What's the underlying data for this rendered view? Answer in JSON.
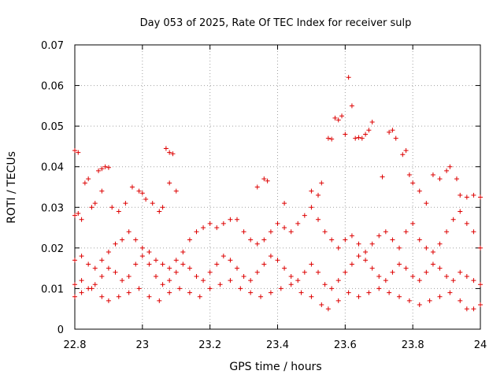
{
  "chart_data": {
    "type": "scatter",
    "title": "Day 053 of 2025, Rate Of TEC Index for receiver sulp",
    "xlabel": "GPS time / hours",
    "ylabel": "ROTI / TECUs",
    "xlim": [
      22.8,
      24.0
    ],
    "ylim": [
      0,
      0.07
    ],
    "xticks": [
      "22.8",
      "23",
      "23.2",
      "23.4",
      "23.6",
      "23.8",
      "24"
    ],
    "yticks": [
      "0",
      "0.01",
      "0.02",
      "0.03",
      "0.04",
      "0.05",
      "0.06",
      "0.07"
    ],
    "grid": true,
    "marker": "+",
    "marker_color": "#dd0000",
    "series": [
      {
        "name": "ROTI",
        "points": [
          [
            22.8,
            0.044
          ],
          [
            22.81,
            0.0435
          ],
          [
            22.83,
            0.036
          ],
          [
            22.84,
            0.037
          ],
          [
            22.85,
            0.03
          ],
          [
            22.8,
            0.028
          ],
          [
            22.81,
            0.0285
          ],
          [
            22.82,
            0.027
          ],
          [
            22.86,
            0.031
          ],
          [
            22.88,
            0.034
          ],
          [
            22.87,
            0.039
          ],
          [
            22.88,
            0.0395
          ],
          [
            22.89,
            0.04
          ],
          [
            22.9,
            0.0398
          ],
          [
            22.91,
            0.03
          ],
          [
            22.93,
            0.029
          ],
          [
            22.95,
            0.031
          ],
          [
            22.97,
            0.035
          ],
          [
            22.99,
            0.034
          ],
          [
            23.0,
            0.0335
          ],
          [
            23.01,
            0.032
          ],
          [
            23.03,
            0.031
          ],
          [
            23.05,
            0.029
          ],
          [
            23.06,
            0.03
          ],
          [
            23.07,
            0.0445
          ],
          [
            23.08,
            0.0435
          ],
          [
            23.09,
            0.0432
          ],
          [
            23.08,
            0.036
          ],
          [
            23.1,
            0.034
          ],
          [
            23.34,
            0.035
          ],
          [
            23.36,
            0.037
          ],
          [
            23.37,
            0.0365
          ],
          [
            23.42,
            0.031
          ],
          [
            23.5,
            0.034
          ],
          [
            23.52,
            0.033
          ],
          [
            23.53,
            0.036
          ],
          [
            23.55,
            0.047
          ],
          [
            23.56,
            0.0468
          ],
          [
            23.57,
            0.052
          ],
          [
            23.58,
            0.0515
          ],
          [
            23.59,
            0.0525
          ],
          [
            23.6,
            0.048
          ],
          [
            23.61,
            0.062
          ],
          [
            23.62,
            0.055
          ],
          [
            23.63,
            0.047
          ],
          [
            23.64,
            0.0472
          ],
          [
            23.65,
            0.047
          ],
          [
            23.66,
            0.048
          ],
          [
            23.67,
            0.049
          ],
          [
            23.68,
            0.051
          ],
          [
            23.71,
            0.0375
          ],
          [
            23.73,
            0.0485
          ],
          [
            23.74,
            0.049
          ],
          [
            23.75,
            0.047
          ],
          [
            23.77,
            0.043
          ],
          [
            23.78,
            0.044
          ],
          [
            23.79,
            0.038
          ],
          [
            23.8,
            0.036
          ],
          [
            23.82,
            0.034
          ],
          [
            23.84,
            0.031
          ],
          [
            23.86,
            0.038
          ],
          [
            23.88,
            0.037
          ],
          [
            23.9,
            0.039
          ],
          [
            23.91,
            0.04
          ],
          [
            23.93,
            0.037
          ],
          [
            23.94,
            0.033
          ],
          [
            23.96,
            0.0325
          ],
          [
            23.98,
            0.033
          ],
          [
            24.0,
            0.0325
          ],
          [
            22.8,
            0.017
          ],
          [
            22.82,
            0.018
          ],
          [
            22.84,
            0.016
          ],
          [
            22.86,
            0.015
          ],
          [
            22.88,
            0.017
          ],
          [
            22.9,
            0.019
          ],
          [
            22.92,
            0.021
          ],
          [
            22.94,
            0.022
          ],
          [
            22.96,
            0.024
          ],
          [
            22.98,
            0.022
          ],
          [
            23.0,
            0.02
          ],
          [
            23.02,
            0.019
          ],
          [
            23.04,
            0.017
          ],
          [
            23.06,
            0.016
          ],
          [
            23.08,
            0.015
          ],
          [
            23.1,
            0.017
          ],
          [
            23.12,
            0.019
          ],
          [
            23.14,
            0.022
          ],
          [
            23.16,
            0.024
          ],
          [
            23.18,
            0.025
          ],
          [
            23.2,
            0.026
          ],
          [
            23.22,
            0.025
          ],
          [
            23.24,
            0.026
          ],
          [
            23.26,
            0.027
          ],
          [
            23.28,
            0.027
          ],
          [
            23.3,
            0.024
          ],
          [
            23.32,
            0.022
          ],
          [
            23.34,
            0.021
          ],
          [
            23.36,
            0.022
          ],
          [
            23.38,
            0.024
          ],
          [
            23.4,
            0.026
          ],
          [
            23.42,
            0.025
          ],
          [
            23.44,
            0.024
          ],
          [
            23.46,
            0.026
          ],
          [
            23.48,
            0.028
          ],
          [
            23.5,
            0.03
          ],
          [
            23.52,
            0.027
          ],
          [
            23.54,
            0.024
          ],
          [
            23.56,
            0.022
          ],
          [
            23.58,
            0.02
          ],
          [
            23.6,
            0.022
          ],
          [
            23.62,
            0.023
          ],
          [
            23.64,
            0.021
          ],
          [
            23.66,
            0.019
          ],
          [
            23.68,
            0.021
          ],
          [
            23.7,
            0.023
          ],
          [
            23.72,
            0.024
          ],
          [
            23.74,
            0.022
          ],
          [
            23.76,
            0.02
          ],
          [
            23.78,
            0.024
          ],
          [
            23.8,
            0.026
          ],
          [
            23.82,
            0.022
          ],
          [
            23.84,
            0.02
          ],
          [
            23.86,
            0.019
          ],
          [
            23.88,
            0.021
          ],
          [
            23.9,
            0.024
          ],
          [
            23.92,
            0.027
          ],
          [
            23.94,
            0.029
          ],
          [
            23.96,
            0.026
          ],
          [
            23.98,
            0.024
          ],
          [
            24.0,
            0.02
          ],
          [
            22.8,
            0.011
          ],
          [
            22.82,
            0.012
          ],
          [
            22.84,
            0.01
          ],
          [
            22.86,
            0.011
          ],
          [
            22.88,
            0.013
          ],
          [
            22.9,
            0.015
          ],
          [
            22.92,
            0.014
          ],
          [
            22.94,
            0.012
          ],
          [
            22.96,
            0.013
          ],
          [
            22.98,
            0.016
          ],
          [
            23.0,
            0.018
          ],
          [
            23.02,
            0.016
          ],
          [
            23.04,
            0.013
          ],
          [
            23.06,
            0.011
          ],
          [
            23.08,
            0.012
          ],
          [
            23.1,
            0.014
          ],
          [
            23.12,
            0.016
          ],
          [
            23.14,
            0.015
          ],
          [
            23.16,
            0.013
          ],
          [
            23.18,
            0.012
          ],
          [
            23.2,
            0.014
          ],
          [
            23.22,
            0.016
          ],
          [
            23.24,
            0.018
          ],
          [
            23.26,
            0.017
          ],
          [
            23.28,
            0.015
          ],
          [
            23.3,
            0.013
          ],
          [
            23.32,
            0.012
          ],
          [
            23.34,
            0.014
          ],
          [
            23.36,
            0.016
          ],
          [
            23.38,
            0.018
          ],
          [
            23.4,
            0.017
          ],
          [
            23.42,
            0.015
          ],
          [
            23.44,
            0.013
          ],
          [
            23.46,
            0.012
          ],
          [
            23.48,
            0.014
          ],
          [
            23.5,
            0.016
          ],
          [
            23.52,
            0.014
          ],
          [
            23.54,
            0.011
          ],
          [
            23.56,
            0.01
          ],
          [
            23.58,
            0.012
          ],
          [
            23.6,
            0.014
          ],
          [
            23.62,
            0.016
          ],
          [
            23.64,
            0.018
          ],
          [
            23.66,
            0.017
          ],
          [
            23.68,
            0.015
          ],
          [
            23.7,
            0.013
          ],
          [
            23.72,
            0.012
          ],
          [
            23.74,
            0.014
          ],
          [
            23.76,
            0.016
          ],
          [
            23.78,
            0.015
          ],
          [
            23.8,
            0.013
          ],
          [
            23.82,
            0.012
          ],
          [
            23.84,
            0.014
          ],
          [
            23.86,
            0.016
          ],
          [
            23.88,
            0.015
          ],
          [
            23.9,
            0.013
          ],
          [
            23.92,
            0.012
          ],
          [
            23.94,
            0.014
          ],
          [
            23.96,
            0.013
          ],
          [
            23.98,
            0.012
          ],
          [
            24.0,
            0.011
          ],
          [
            22.8,
            0.008
          ],
          [
            22.82,
            0.009
          ],
          [
            22.85,
            0.01
          ],
          [
            22.88,
            0.008
          ],
          [
            22.9,
            0.007
          ],
          [
            22.93,
            0.008
          ],
          [
            22.96,
            0.009
          ],
          [
            22.99,
            0.01
          ],
          [
            23.02,
            0.008
          ],
          [
            23.05,
            0.007
          ],
          [
            23.08,
            0.009
          ],
          [
            23.11,
            0.01
          ],
          [
            23.14,
            0.009
          ],
          [
            23.17,
            0.008
          ],
          [
            23.2,
            0.01
          ],
          [
            23.23,
            0.011
          ],
          [
            23.26,
            0.012
          ],
          [
            23.29,
            0.01
          ],
          [
            23.32,
            0.009
          ],
          [
            23.35,
            0.008
          ],
          [
            23.38,
            0.009
          ],
          [
            23.41,
            0.01
          ],
          [
            23.44,
            0.011
          ],
          [
            23.47,
            0.009
          ],
          [
            23.5,
            0.008
          ],
          [
            23.53,
            0.006
          ],
          [
            23.55,
            0.005
          ],
          [
            23.58,
            0.007
          ],
          [
            23.61,
            0.009
          ],
          [
            23.64,
            0.008
          ],
          [
            23.67,
            0.009
          ],
          [
            23.7,
            0.01
          ],
          [
            23.73,
            0.009
          ],
          [
            23.76,
            0.008
          ],
          [
            23.79,
            0.007
          ],
          [
            23.82,
            0.006
          ],
          [
            23.85,
            0.007
          ],
          [
            23.88,
            0.008
          ],
          [
            23.91,
            0.009
          ],
          [
            23.94,
            0.007
          ],
          [
            23.96,
            0.005
          ],
          [
            23.98,
            0.005
          ],
          [
            24.0,
            0.006
          ]
        ]
      }
    ]
  }
}
